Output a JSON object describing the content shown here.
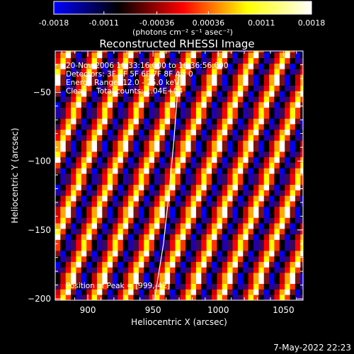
{
  "colorbar": {
    "tick_labels": [
      "-0.0018",
      "-0.0011",
      "-0.00036",
      "0.00036",
      "0.0011",
      "0.0018"
    ],
    "tick_values": [
      -0.0018,
      -0.0011,
      -0.00036,
      0.00036,
      0.0011,
      0.0018
    ],
    "range": [
      -0.0018,
      0.0018
    ],
    "unit_text": "(photons cm⁻² s⁻¹ asec⁻²)",
    "colors": [
      "#0000ff",
      "#000000",
      "#ff0000",
      "#ffff00",
      "#ffffff"
    ]
  },
  "chart_data": {
    "type": "heatmap",
    "title": "Reconstructed RHESSI Image",
    "xlabel": "Heliocentric X (arcsec)",
    "ylabel": "Heliocentric Y (arcsec)",
    "xlim": [
      875,
      1065
    ],
    "ylim": [
      -201,
      -20
    ],
    "x_ticks": [
      900,
      950,
      1000,
      1050
    ],
    "y_ticks": [
      -50,
      -100,
      -150,
      -200
    ],
    "x_tick_labels": [
      "900",
      "950",
      "1000",
      "1050"
    ],
    "y_tick_labels": [
      "−50",
      "−100",
      "−150",
      "−200"
    ],
    "pixel_size_arcsec": 4,
    "stripe_pattern": {
      "period_arcsec": 24,
      "stripe_slope": 2.4,
      "palette_sequence": [
        "#ff0000",
        "#ffaa00",
        "#ffff00",
        "#ffffff",
        "#ff3300",
        "#7a1010",
        "#000000",
        "#0000ff",
        "#2200aa",
        "#000000",
        "#3a0a55",
        "#cc0000"
      ]
    },
    "contour_line": [
      [
        951,
        -201
      ],
      [
        958,
        -160
      ],
      [
        962,
        -125
      ],
      [
        966,
        -85
      ],
      [
        970,
        -35
      ]
    ],
    "annotations": [
      "20-Nov-2006 16:33:16.000 to 16:36:56.000",
      "Detectors: 3F 4F 5F 6F 7F 8F Att 0",
      "Energy Range: 12.0 - 25.0 keV",
      "Clean    Total counts: 1.04E+04"
    ],
    "peak_label": "Position of Peak = [999,-42]",
    "grid": false
  },
  "footer": {
    "timestamp": "7-May-2022 22:23"
  }
}
